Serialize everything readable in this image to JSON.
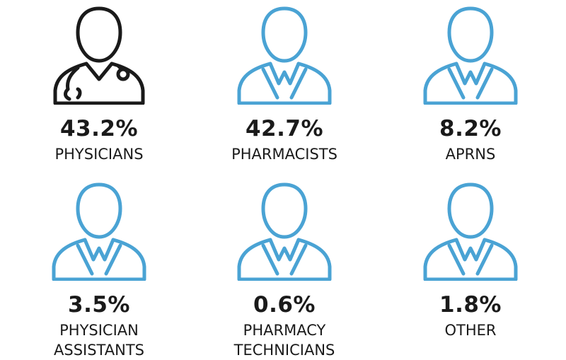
{
  "colors": {
    "dark_icon": "#1a1a1a",
    "blue_icon": "#4aa3d4",
    "text": "#1a1a1a"
  },
  "items": [
    {
      "percent": "43.2%",
      "label": "PHYSICIANS",
      "icon": "doctor-stethoscope-icon"
    },
    {
      "percent": "42.7%",
      "label": "PHARMACISTS",
      "icon": "person-coat-icon"
    },
    {
      "percent": "8.2%",
      "label": "APRNS",
      "icon": "person-coat-icon"
    },
    {
      "percent": "3.5%",
      "label": "PHYSICIAN\nASSISTANTS",
      "icon": "person-coat-icon"
    },
    {
      "percent": "0.6%",
      "label": "PHARMACY\nTECHNICIANS",
      "icon": "person-coat-icon"
    },
    {
      "percent": "1.8%",
      "label": "OTHER",
      "icon": "person-coat-icon"
    }
  ]
}
